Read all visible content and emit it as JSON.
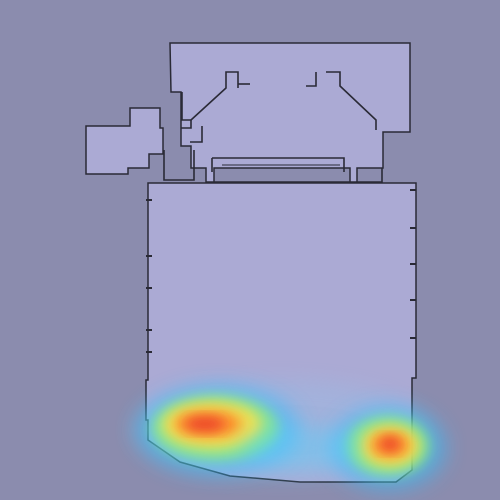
{
  "map": {
    "kind": "floor-plan-occupancy-heatmap",
    "background_color": "#8b8cae",
    "floor_fill_color": "#abaad4",
    "wall_color": "#2a2a36",
    "heatmap": {
      "colormap": "jet",
      "hotspots": [
        {
          "name": "hotspot-lower-left",
          "intensity": 1.0
        },
        {
          "name": "hotspot-lower-right",
          "intensity": 0.95
        }
      ]
    }
  }
}
